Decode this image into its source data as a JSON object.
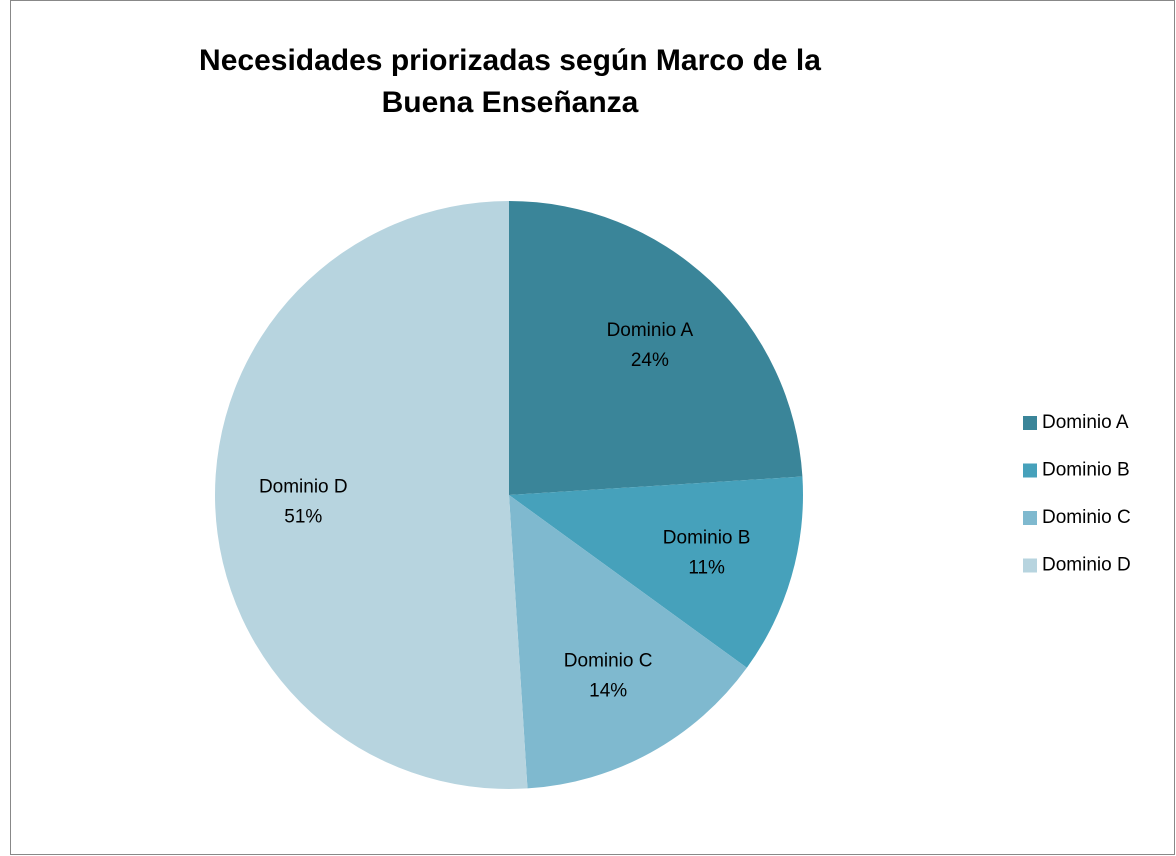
{
  "chart_data": {
    "type": "pie",
    "title": "Necesidades priorizadas según Marco de la Buena Enseñanza",
    "categories": [
      "Dominio A",
      "Dominio B",
      "Dominio C",
      "Dominio D"
    ],
    "values": [
      24,
      11,
      14,
      51
    ],
    "value_labels": [
      "24%",
      "11%",
      "14%",
      "51%"
    ],
    "colors": [
      "#3a8599",
      "#46a1bb",
      "#7fb9cf",
      "#b7d4df"
    ],
    "legend": "right"
  }
}
